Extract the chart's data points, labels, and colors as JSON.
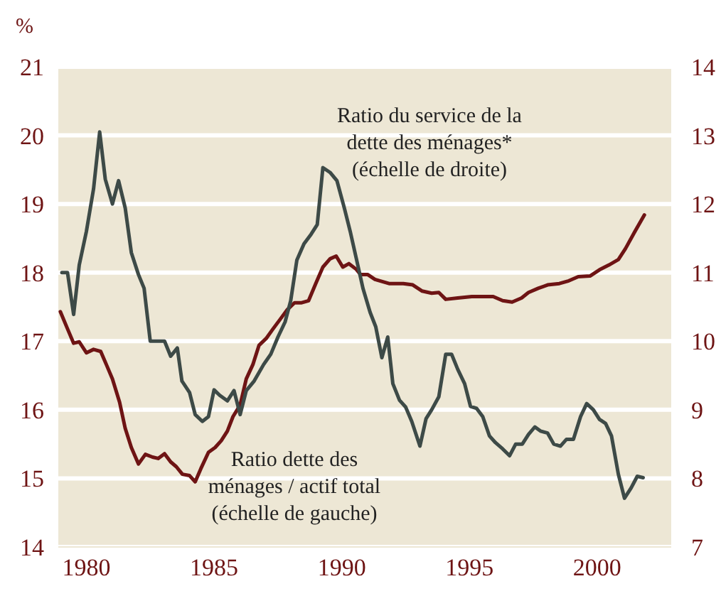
{
  "chart_data": {
    "type": "line",
    "ylabel": "%",
    "xlim": [
      1978.9,
      2002.9
    ],
    "xticks": [
      1980,
      1985,
      1990,
      1995,
      2000
    ],
    "ylim": [
      14,
      21
    ],
    "yticks": [
      14,
      15,
      16,
      17,
      18,
      19,
      20,
      21
    ],
    "y2lim": [
      7,
      14
    ],
    "y2ticks": [
      7,
      8,
      9,
      10,
      11,
      12,
      13,
      14
    ],
    "grid": "y",
    "legend": false,
    "marker": "none",
    "line_style": "solid",
    "series": [
      {
        "name": "Ratio dette des ménages / actif total (échelle de gauche)",
        "color": "#6e1414",
        "x": [
          1978.98,
          1979.26,
          1979.5,
          1979.72,
          1980.0,
          1980.28,
          1980.56,
          1980.78,
          1981.02,
          1981.3,
          1981.52,
          1981.76,
          1982.04,
          1982.31,
          1982.59,
          1982.81,
          1983.06,
          1983.3,
          1983.52,
          1983.76,
          1984.04,
          1984.26,
          1984.48,
          1984.78,
          1985.04,
          1985.28,
          1985.52,
          1985.74,
          1986.02,
          1986.26,
          1986.52,
          1986.76,
          1987.04,
          1987.31,
          1987.59,
          1987.87,
          1988.15,
          1988.43,
          1988.7,
          1988.98,
          1989.26,
          1989.54,
          1989.78,
          1990.04,
          1990.28,
          1990.56,
          1990.74,
          1991.02,
          1991.3,
          1991.85,
          1992.41,
          1992.78,
          1993.15,
          1993.52,
          1993.8,
          1994.07,
          1994.54,
          1995.09,
          1995.93,
          1996.3,
          1996.67,
          1997.04,
          1997.31,
          1997.69,
          1998.06,
          1998.52,
          1998.89,
          1999.26,
          1999.72,
          2000.09,
          2000.46,
          2000.83,
          2001.11,
          2001.48,
          2001.85
        ],
        "values": [
          17.43,
          17.18,
          16.97,
          16.99,
          16.83,
          16.88,
          16.85,
          16.66,
          16.45,
          16.11,
          15.73,
          15.45,
          15.21,
          15.35,
          15.31,
          15.29,
          15.36,
          15.24,
          15.17,
          15.06,
          15.04,
          14.95,
          15.14,
          15.38,
          15.45,
          15.55,
          15.69,
          15.9,
          16.07,
          16.45,
          16.66,
          16.94,
          17.04,
          17.18,
          17.32,
          17.46,
          17.56,
          17.56,
          17.59,
          17.84,
          18.08,
          18.2,
          18.24,
          18.08,
          18.13,
          18.05,
          17.97,
          17.97,
          17.9,
          17.84,
          17.84,
          17.82,
          17.73,
          17.7,
          17.71,
          17.61,
          17.63,
          17.65,
          17.65,
          17.59,
          17.57,
          17.63,
          17.71,
          17.77,
          17.82,
          17.84,
          17.88,
          17.94,
          17.95,
          18.04,
          18.11,
          18.19,
          18.35,
          18.6,
          18.84
        ]
      },
      {
        "name": "Ratio du service de la dette des ménages* (échelle de droite)",
        "color": "#3d4a47",
        "axis": "y2",
        "x": [
          1979.04,
          1979.26,
          1979.5,
          1979.72,
          1980.0,
          1980.28,
          1980.52,
          1980.74,
          1981.02,
          1981.26,
          1981.52,
          1981.76,
          1982.04,
          1982.26,
          1982.5,
          1983.06,
          1983.3,
          1983.56,
          1983.74,
          1984.04,
          1984.26,
          1984.54,
          1984.78,
          1985.0,
          1985.22,
          1985.52,
          1985.78,
          1986.02,
          1986.26,
          1986.57,
          1986.94,
          1987.22,
          1987.5,
          1987.78,
          1988.0,
          1988.24,
          1988.52,
          1988.8,
          1989.04,
          1989.26,
          1989.54,
          1989.81,
          1990.1,
          1990.33,
          1990.56,
          1990.83,
          1991.11,
          1991.33,
          1991.57,
          1991.8,
          1992.0,
          1992.26,
          1992.5,
          1992.74,
          1993.06,
          1993.3,
          1993.52,
          1993.8,
          1994.07,
          1994.3,
          1994.54,
          1994.81,
          1995.04,
          1995.28,
          1995.52,
          1995.78,
          1996.02,
          1996.3,
          1996.57,
          1996.81,
          1997.07,
          1997.31,
          1997.56,
          1997.78,
          1998.06,
          1998.3,
          1998.56,
          1998.8,
          1999.07,
          1999.35,
          1999.59,
          1999.85,
          2000.09,
          2000.33,
          2000.56,
          2000.83,
          2001.07,
          2001.33,
          2001.57,
          2001.8
        ],
        "values": [
          11.0,
          11.0,
          10.39,
          11.11,
          11.6,
          12.22,
          13.05,
          12.36,
          12.0,
          12.34,
          11.94,
          11.29,
          10.97,
          10.77,
          10.0,
          10.0,
          9.78,
          9.9,
          9.42,
          9.25,
          8.93,
          8.83,
          8.9,
          9.29,
          9.21,
          9.13,
          9.28,
          8.93,
          9.28,
          9.42,
          9.66,
          9.81,
          10.06,
          10.28,
          10.59,
          11.18,
          11.42,
          11.56,
          11.7,
          12.53,
          12.46,
          12.34,
          11.94,
          11.6,
          11.22,
          10.77,
          10.42,
          10.21,
          9.76,
          10.06,
          9.38,
          9.14,
          9.04,
          8.83,
          8.47,
          8.87,
          9.0,
          9.19,
          9.81,
          9.81,
          9.59,
          9.38,
          9.05,
          9.02,
          8.9,
          8.62,
          8.52,
          8.43,
          8.33,
          8.5,
          8.5,
          8.64,
          8.75,
          8.69,
          8.66,
          8.5,
          8.47,
          8.57,
          8.57,
          8.9,
          9.09,
          9.0,
          8.86,
          8.8,
          8.62,
          8.06,
          7.71,
          7.86,
          8.03,
          8.01
        ]
      }
    ]
  }
}
